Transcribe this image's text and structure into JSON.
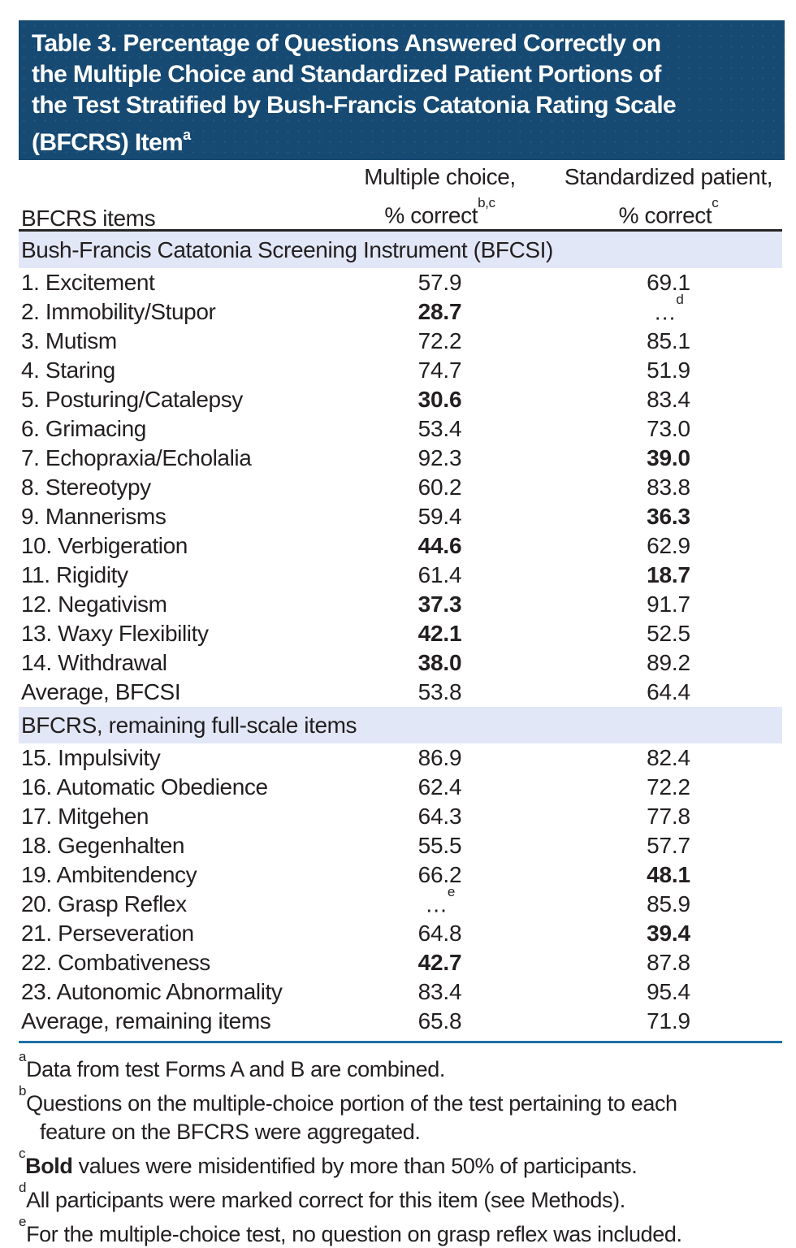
{
  "colors": {
    "header_bg": "#164a73",
    "header_text": "#ffffff",
    "section_band_bg": "#e2e7f7",
    "rule_dark": "#262626",
    "rule_blue": "#1e6fa5",
    "body_text": "#231f20"
  },
  "title": {
    "lines": [
      "Table 3. Percentage of Questions Answered Correctly on",
      "the Multiple Choice and Standardized Patient Portions of",
      "the Test Stratified by Bush-Francis Catatonia Rating Scale",
      "(BFCRS) Item"
    ],
    "superscript": "a"
  },
  "column_headers": {
    "items_label": "BFCRS items",
    "mc_line1": "Multiple choice,",
    "mc_line2": "% correct",
    "mc_sup": "b,c",
    "sp_line1": "Standardized patient,",
    "sp_line2": "% correct",
    "sp_sup": "c"
  },
  "sections": [
    {
      "header": "Bush-Francis Catatonia Screening Instrument (BFCSI)",
      "rows": [
        {
          "item": "1. Excitement",
          "mc": "57.9",
          "sp": "69.1"
        },
        {
          "item": "2. Immobility/Stupor",
          "mc": "28.7",
          "mc_bold": true,
          "sp": "…",
          "sp_sup": "d"
        },
        {
          "item": "3. Mutism",
          "mc": "72.2",
          "sp": "85.1"
        },
        {
          "item": "4. Staring",
          "mc": "74.7",
          "sp": "51.9"
        },
        {
          "item": "5. Posturing/Catalepsy",
          "mc": "30.6",
          "mc_bold": true,
          "sp": "83.4"
        },
        {
          "item": "6. Grimacing",
          "mc": "53.4",
          "sp": "73.0"
        },
        {
          "item": "7. Echopraxia/Echolalia",
          "mc": "92.3",
          "sp": "39.0",
          "sp_bold": true
        },
        {
          "item": "8. Stereotypy",
          "mc": "60.2",
          "sp": "83.8"
        },
        {
          "item": "9. Mannerisms",
          "mc": "59.4",
          "sp": "36.3",
          "sp_bold": true
        },
        {
          "item": "10. Verbigeration",
          "mc": "44.6",
          "mc_bold": true,
          "sp": "62.9"
        },
        {
          "item": "11. Rigidity",
          "mc": "61.4",
          "sp": "18.7",
          "sp_bold": true
        },
        {
          "item": "12. Negativism",
          "mc": "37.3",
          "mc_bold": true,
          "sp": "91.7"
        },
        {
          "item": "13. Waxy Flexibility",
          "mc": "42.1",
          "mc_bold": true,
          "sp": "52.5"
        },
        {
          "item": "14. Withdrawal",
          "mc": "38.0",
          "mc_bold": true,
          "sp": "89.2"
        },
        {
          "item": "Average, BFCSI",
          "mc": "53.8",
          "sp": "64.4"
        }
      ]
    },
    {
      "header": "BFCRS, remaining full-scale items",
      "rows": [
        {
          "item": "15. Impulsivity",
          "mc": "86.9",
          "sp": "82.4"
        },
        {
          "item": "16. Automatic Obedience",
          "mc": "62.4",
          "sp": "72.2"
        },
        {
          "item": "17. Mitgehen",
          "mc": "64.3",
          "sp": "77.8"
        },
        {
          "item": "18. Gegenhalten",
          "mc": "55.5",
          "sp": "57.7"
        },
        {
          "item": "19. Ambitendency",
          "mc": "66.2",
          "sp": "48.1",
          "sp_bold": true
        },
        {
          "item": "20. Grasp Reflex",
          "mc": "…",
          "mc_sup": "e",
          "sp": "85.9"
        },
        {
          "item": "21. Perseveration",
          "mc": "64.8",
          "sp": "39.4",
          "sp_bold": true
        },
        {
          "item": "22. Combativeness",
          "mc": "42.7",
          "mc_bold": true,
          "sp": "87.8"
        },
        {
          "item": "23. Autonomic Abnormality",
          "mc": "83.4",
          "sp": "95.4"
        },
        {
          "item": "Average, remaining items",
          "mc": "65.8",
          "sp": "71.9"
        }
      ]
    }
  ],
  "footnote_lines": [
    {
      "sup": "a",
      "text": "Data from test Forms A and B are combined.",
      "indent": false
    },
    {
      "sup": "b",
      "text": "Questions on the multiple-choice portion of the test pertaining to each",
      "indent": false
    },
    {
      "sup": "",
      "text": "feature on the BFCRS were aggregated.",
      "indent": true
    },
    {
      "sup": "c",
      "bold_prefix": "Bold",
      "text": " values were misidentified by more than 50% of participants.",
      "indent": false
    },
    {
      "sup": "d",
      "text": "All participants were marked correct for this item (see Methods).",
      "indent": false
    },
    {
      "sup": "e",
      "text": "For the multiple-choice test, no question on grasp reflex was included.",
      "indent": false
    }
  ]
}
